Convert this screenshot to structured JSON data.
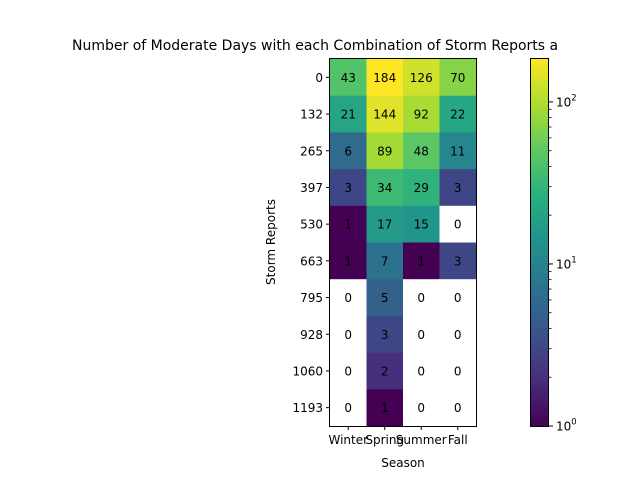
{
  "chart_data": {
    "type": "heatmap",
    "title": "Number of Moderate Days with each Combination of Storm Reports a",
    "xlabel": "Season",
    "ylabel": "Storm Reports",
    "x_categories": [
      "Winter",
      "Spring",
      "Summer",
      "Fall"
    ],
    "y_categories": [
      "0",
      "132",
      "265",
      "397",
      "530",
      "663",
      "795",
      "928",
      "1060",
      "1193"
    ],
    "values": [
      [
        43,
        184,
        126,
        70
      ],
      [
        21,
        144,
        92,
        22
      ],
      [
        6,
        89,
        48,
        11
      ],
      [
        3,
        34,
        29,
        3
      ],
      [
        1,
        17,
        15,
        0
      ],
      [
        1,
        7,
        1,
        3
      ],
      [
        0,
        5,
        0,
        0
      ],
      [
        0,
        3,
        0,
        0
      ],
      [
        0,
        2,
        0,
        0
      ],
      [
        0,
        1,
        0,
        0
      ]
    ],
    "color_scale": "log",
    "colormap": "viridis",
    "colorbar": {
      "range": [
        1,
        184
      ],
      "ticks": [
        {
          "value": 1,
          "base": "10",
          "exp": "0"
        },
        {
          "value": 10,
          "base": "10",
          "exp": "1"
        },
        {
          "value": 100,
          "base": "10",
          "exp": "2"
        }
      ]
    },
    "zero_color": "#ffffff"
  }
}
